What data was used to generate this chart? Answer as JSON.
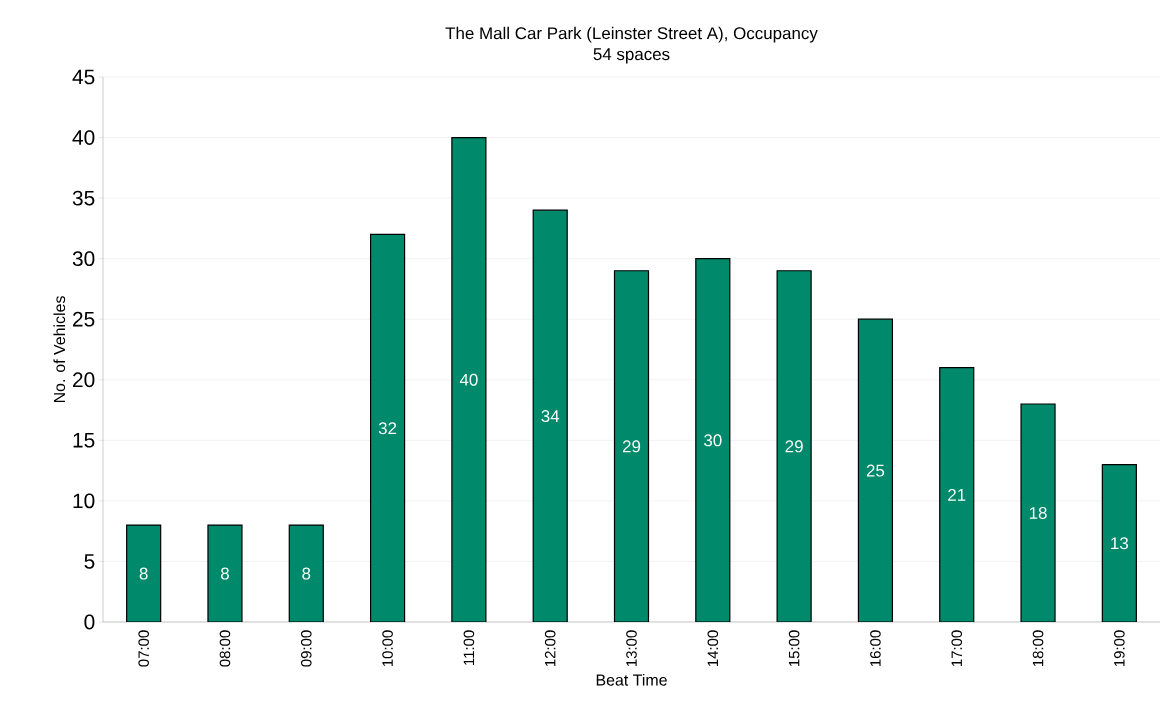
{
  "chart_data": {
    "type": "bar",
    "title": "The Mall Car Park (Leinster Street A), Occupancy",
    "subtitle": "54 spaces",
    "xlabel": "Beat Time",
    "ylabel": "No. of Vehicles",
    "categories": [
      "07:00",
      "08:00",
      "09:00",
      "10:00",
      "11:00",
      "12:00",
      "13:00",
      "14:00",
      "15:00",
      "16:00",
      "17:00",
      "18:00",
      "19:00"
    ],
    "values": [
      8,
      8,
      8,
      32,
      40,
      34,
      29,
      30,
      29,
      25,
      21,
      18,
      13
    ],
    "color": "#00896a",
    "ylim": [
      0,
      45
    ],
    "yticks": [
      0,
      5,
      10,
      15,
      20,
      25,
      30,
      35,
      40,
      45
    ],
    "grid": "y",
    "data_labels": true
  }
}
